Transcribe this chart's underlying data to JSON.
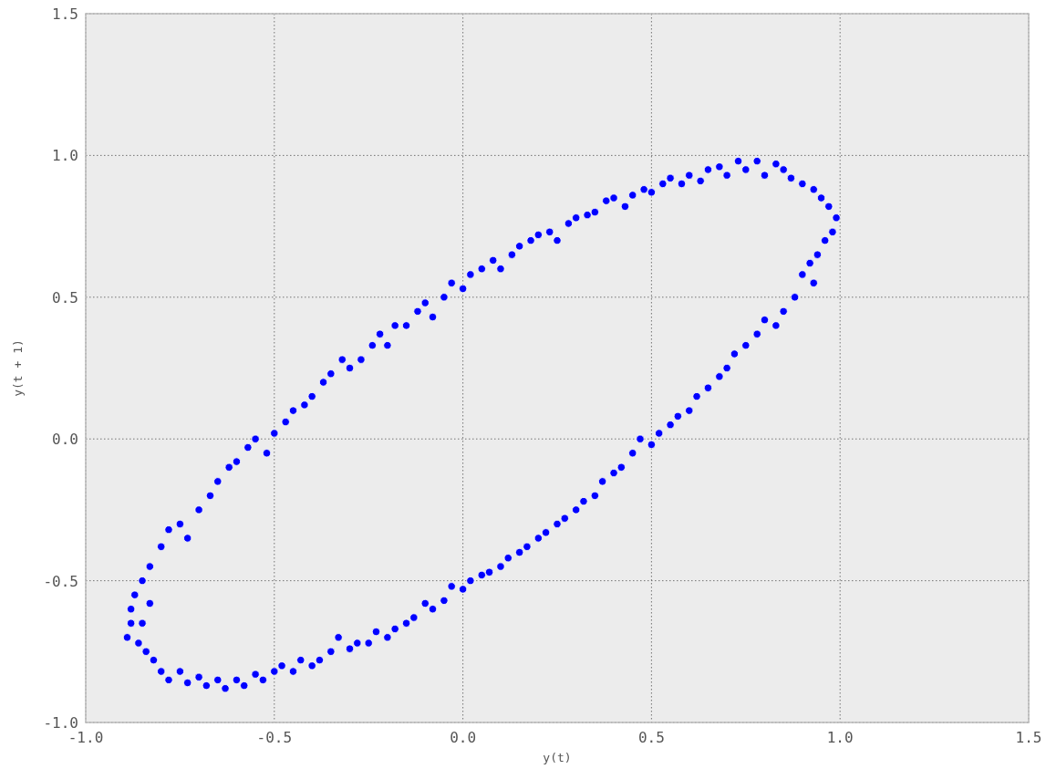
{
  "chart_data": {
    "type": "scatter",
    "xlabel": "y(t)",
    "ylabel": "y(t + 1)",
    "xlim": [
      -1.0,
      1.5
    ],
    "ylim": [
      -1.0,
      1.5
    ],
    "xticks": [
      {
        "value": -1,
        "label": "-1.0"
      },
      {
        "value": -0.5,
        "label": "-0.5"
      },
      {
        "value": 0,
        "label": "0.0"
      },
      {
        "value": 0.5,
        "label": "0.5"
      },
      {
        "value": 1,
        "label": "1.0"
      },
      {
        "value": 1.5,
        "label": "1.5"
      }
    ],
    "yticks": [
      {
        "value": -1,
        "label": "-1.0"
      },
      {
        "value": -0.5,
        "label": "-0.5"
      },
      {
        "value": 0,
        "label": "0.0"
      },
      {
        "value": 0.5,
        "label": "0.5"
      },
      {
        "value": 1,
        "label": "1.0"
      },
      {
        "value": 1.5,
        "label": "1.5"
      }
    ],
    "grid": true,
    "marker": "circle",
    "series": [
      {
        "color": "#0000ff",
        "x": [
          -0.89,
          -0.88,
          -0.87,
          -0.85,
          -0.83,
          -0.8,
          -0.78,
          -0.75,
          -0.73,
          -0.7,
          -0.67,
          -0.65,
          -0.62,
          -0.6,
          -0.57,
          -0.55,
          -0.52,
          -0.5,
          -0.47,
          -0.45,
          -0.42,
          -0.4,
          -0.37,
          -0.35,
          -0.32,
          -0.3,
          -0.27,
          -0.24,
          -0.22,
          -0.2,
          -0.18,
          -0.15,
          -0.12,
          -0.1,
          -0.08,
          -0.05,
          -0.03,
          0.0,
          0.02,
          0.05,
          0.08,
          0.1,
          0.13,
          0.15,
          0.18,
          0.2,
          0.23,
          0.25,
          0.28,
          0.3,
          0.33,
          0.35,
          0.38,
          0.4,
          0.43,
          0.45,
          0.48,
          0.5,
          0.53,
          0.55,
          0.58,
          0.6,
          0.63,
          0.65,
          0.68,
          0.7,
          0.73,
          0.75,
          0.78,
          0.8,
          0.83,
          0.85,
          0.87,
          0.9,
          0.93,
          0.95,
          0.97,
          0.99,
          0.98,
          0.96,
          0.94,
          0.92,
          0.9,
          0.93,
          0.88,
          0.85,
          0.83,
          0.8,
          0.78,
          0.75,
          0.72,
          0.7,
          0.68,
          0.65,
          0.62,
          0.6,
          0.57,
          0.55,
          0.52,
          0.5,
          0.47,
          0.45,
          0.42,
          0.4,
          0.37,
          0.35,
          0.32,
          0.3,
          0.27,
          0.25,
          0.22,
          0.2,
          0.17,
          0.15,
          0.12,
          0.1,
          0.07,
          0.05,
          0.02,
          0.0,
          -0.03,
          -0.05,
          -0.08,
          -0.1,
          -0.13,
          -0.15,
          -0.18,
          -0.2,
          -0.23,
          -0.25,
          -0.28,
          -0.3,
          -0.33,
          -0.35,
          -0.38,
          -0.4,
          -0.43,
          -0.45,
          -0.48,
          -0.5,
          -0.53,
          -0.55,
          -0.58,
          -0.6,
          -0.63,
          -0.65,
          -0.68,
          -0.7,
          -0.73,
          -0.75,
          -0.78,
          -0.8,
          -0.82,
          -0.84,
          -0.86,
          -0.88,
          -0.85,
          -0.83
        ],
        "values": [
          -0.7,
          -0.6,
          -0.55,
          -0.5,
          -0.45,
          -0.38,
          -0.32,
          -0.3,
          -0.35,
          -0.25,
          -0.2,
          -0.15,
          -0.1,
          -0.08,
          -0.03,
          0.0,
          -0.05,
          0.02,
          0.06,
          0.1,
          0.12,
          0.15,
          0.2,
          0.23,
          0.28,
          0.25,
          0.28,
          0.33,
          0.37,
          0.33,
          0.4,
          0.4,
          0.45,
          0.48,
          0.43,
          0.5,
          0.55,
          0.53,
          0.58,
          0.6,
          0.63,
          0.6,
          0.65,
          0.68,
          0.7,
          0.72,
          0.73,
          0.7,
          0.76,
          0.78,
          0.79,
          0.8,
          0.84,
          0.85,
          0.82,
          0.86,
          0.88,
          0.87,
          0.9,
          0.92,
          0.9,
          0.93,
          0.91,
          0.95,
          0.96,
          0.93,
          0.98,
          0.95,
          0.98,
          0.93,
          0.97,
          0.95,
          0.92,
          0.9,
          0.88,
          0.85,
          0.82,
          0.78,
          0.73,
          0.7,
          0.65,
          0.62,
          0.58,
          0.55,
          0.5,
          0.45,
          0.4,
          0.42,
          0.37,
          0.33,
          0.3,
          0.25,
          0.22,
          0.18,
          0.15,
          0.1,
          0.08,
          0.05,
          0.02,
          -0.02,
          0.0,
          -0.05,
          -0.1,
          -0.12,
          -0.15,
          -0.2,
          -0.22,
          -0.25,
          -0.28,
          -0.3,
          -0.33,
          -0.35,
          -0.38,
          -0.4,
          -0.42,
          -0.45,
          -0.47,
          -0.48,
          -0.5,
          -0.53,
          -0.52,
          -0.57,
          -0.6,
          -0.58,
          -0.63,
          -0.65,
          -0.67,
          -0.7,
          -0.68,
          -0.72,
          -0.72,
          -0.74,
          -0.7,
          -0.75,
          -0.78,
          -0.8,
          -0.78,
          -0.82,
          -0.8,
          -0.82,
          -0.85,
          -0.83,
          -0.87,
          -0.85,
          -0.88,
          -0.85,
          -0.87,
          -0.84,
          -0.86,
          -0.82,
          -0.85,
          -0.82,
          -0.78,
          -0.75,
          -0.72,
          -0.65,
          -0.65,
          -0.58
        ]
      }
    ]
  }
}
